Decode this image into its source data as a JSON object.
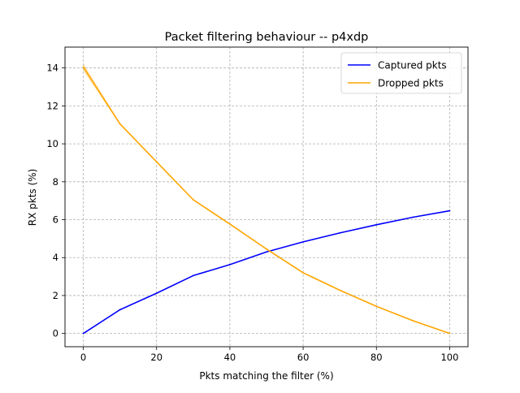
{
  "chart_data": {
    "type": "line",
    "title": "Packet filtering behaviour -- p4xdp",
    "xlabel": "Pkts matching the filter (%)",
    "ylabel": "RX pkts (%)",
    "xlim": [
      -5,
      105
    ],
    "ylim": [
      -0.7,
      15.1
    ],
    "xticks": [
      0,
      20,
      40,
      60,
      80,
      100
    ],
    "yticks": [
      0,
      2,
      4,
      6,
      8,
      10,
      12,
      14
    ],
    "grid": true,
    "legend_position": "top-right",
    "series": [
      {
        "name": "Captured pkts",
        "color": "#0000ff",
        "x": [
          0,
          10,
          20,
          30,
          40,
          50,
          60,
          70,
          80,
          90,
          100
        ],
        "values": [
          0.0,
          1.25,
          2.12,
          3.05,
          3.63,
          4.3,
          4.83,
          5.3,
          5.73,
          6.13,
          6.47
        ]
      },
      {
        "name": "Dropped pkts",
        "color": "#ffa500",
        "x": [
          0,
          10,
          20,
          30,
          40,
          50,
          60,
          70,
          80,
          90,
          100
        ],
        "values": [
          14.05,
          11.05,
          9.05,
          7.05,
          5.77,
          4.45,
          3.2,
          2.28,
          1.43,
          0.67,
          0.0
        ],
        "band_halfwidth": [
          0.2,
          0.05,
          0.02,
          0.02,
          0.02,
          0.02,
          0.02,
          0.02,
          0.02,
          0.02,
          0.02
        ]
      }
    ]
  }
}
